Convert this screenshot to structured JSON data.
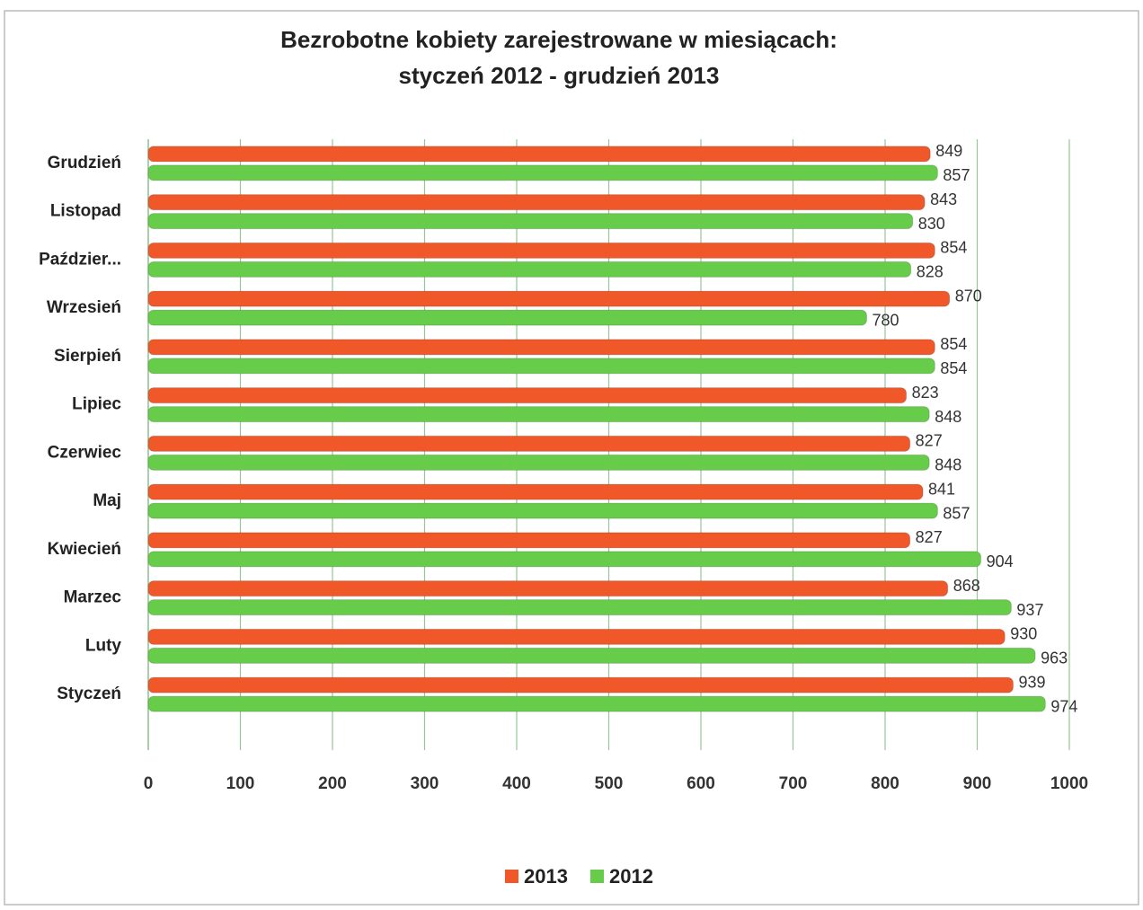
{
  "chart_data": {
    "type": "bar",
    "orientation": "horizontal",
    "title": "Bezrobotne kobiety zarejestrowane w miesiącach:",
    "subtitle": "styczeń 2012 - grudzień 2013",
    "categories": [
      "Grudzień",
      "Listopad",
      "Paździer...",
      "Wrzesień",
      "Sierpień",
      "Lipiec",
      "Czerwiec",
      "Maj",
      "Kwiecień",
      "Marzec",
      "Luty",
      "Styczeń"
    ],
    "series": [
      {
        "name": "2013",
        "color": "#f0582a",
        "values": [
          849,
          843,
          854,
          870,
          854,
          823,
          827,
          841,
          827,
          868,
          930,
          939
        ]
      },
      {
        "name": "2012",
        "color": "#66cc4a",
        "values": [
          857,
          830,
          828,
          780,
          854,
          848,
          848,
          857,
          904,
          937,
          963,
          974
        ]
      }
    ],
    "xlim": [
      0,
      1000
    ],
    "xticks": [
      0,
      100,
      200,
      300,
      400,
      500,
      600,
      700,
      800,
      900,
      1000
    ],
    "grid": true,
    "legend": "bottom"
  }
}
